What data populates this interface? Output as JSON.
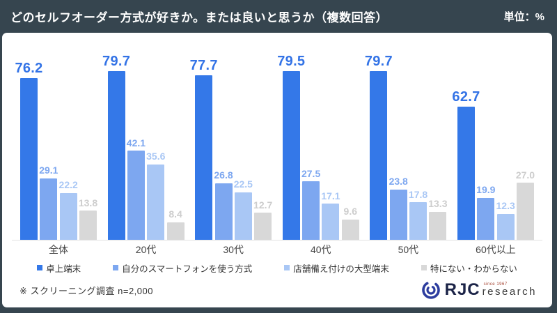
{
  "header": {
    "title": "どのセルフオーダー方式が好きか。または良いと思うか（複数回答）",
    "unit_label": "単位：%"
  },
  "chart_data": {
    "type": "bar",
    "title": "どのセルフオーダー方式が好きか。または良いと思うか（複数回答）",
    "unit": "%",
    "categories": [
      "全体",
      "20代",
      "30代",
      "40代",
      "50代",
      "60代以上"
    ],
    "series": [
      {
        "name": "卓上端末",
        "color": "#3478E8",
        "label_color": "#3373E6",
        "values": [
          76.2,
          79.7,
          77.7,
          79.5,
          79.7,
          62.7
        ]
      },
      {
        "name": "自分のスマートフォンを使う方式",
        "color": "#7DA7F0",
        "label_color": "#7DA7F0",
        "values": [
          29.1,
          42.1,
          26.8,
          27.5,
          23.8,
          19.9
        ]
      },
      {
        "name": "店舗備え付けの大型端末",
        "color": "#A9C7F5",
        "label_color": "#A9C7F5",
        "values": [
          22.2,
          35.6,
          22.5,
          17.1,
          17.8,
          12.3
        ]
      },
      {
        "name": "特にない・わからない",
        "color": "#D8D8D8",
        "label_color": "#CDCDCD",
        "values": [
          13.8,
          8.4,
          12.7,
          9.6,
          13.3,
          27.0
        ]
      }
    ],
    "ylim": [
      0,
      100
    ],
    "grid": false,
    "legend_position": "bottom"
  },
  "footer": {
    "note": "※ スクリーニング調査  n=2,000"
  },
  "logo": {
    "name": "RJC",
    "since": "since 1967",
    "sub": "research"
  },
  "colors": {
    "background": "#36454F",
    "card": "#ffffff",
    "axis_line": "#e4e4e4"
  }
}
